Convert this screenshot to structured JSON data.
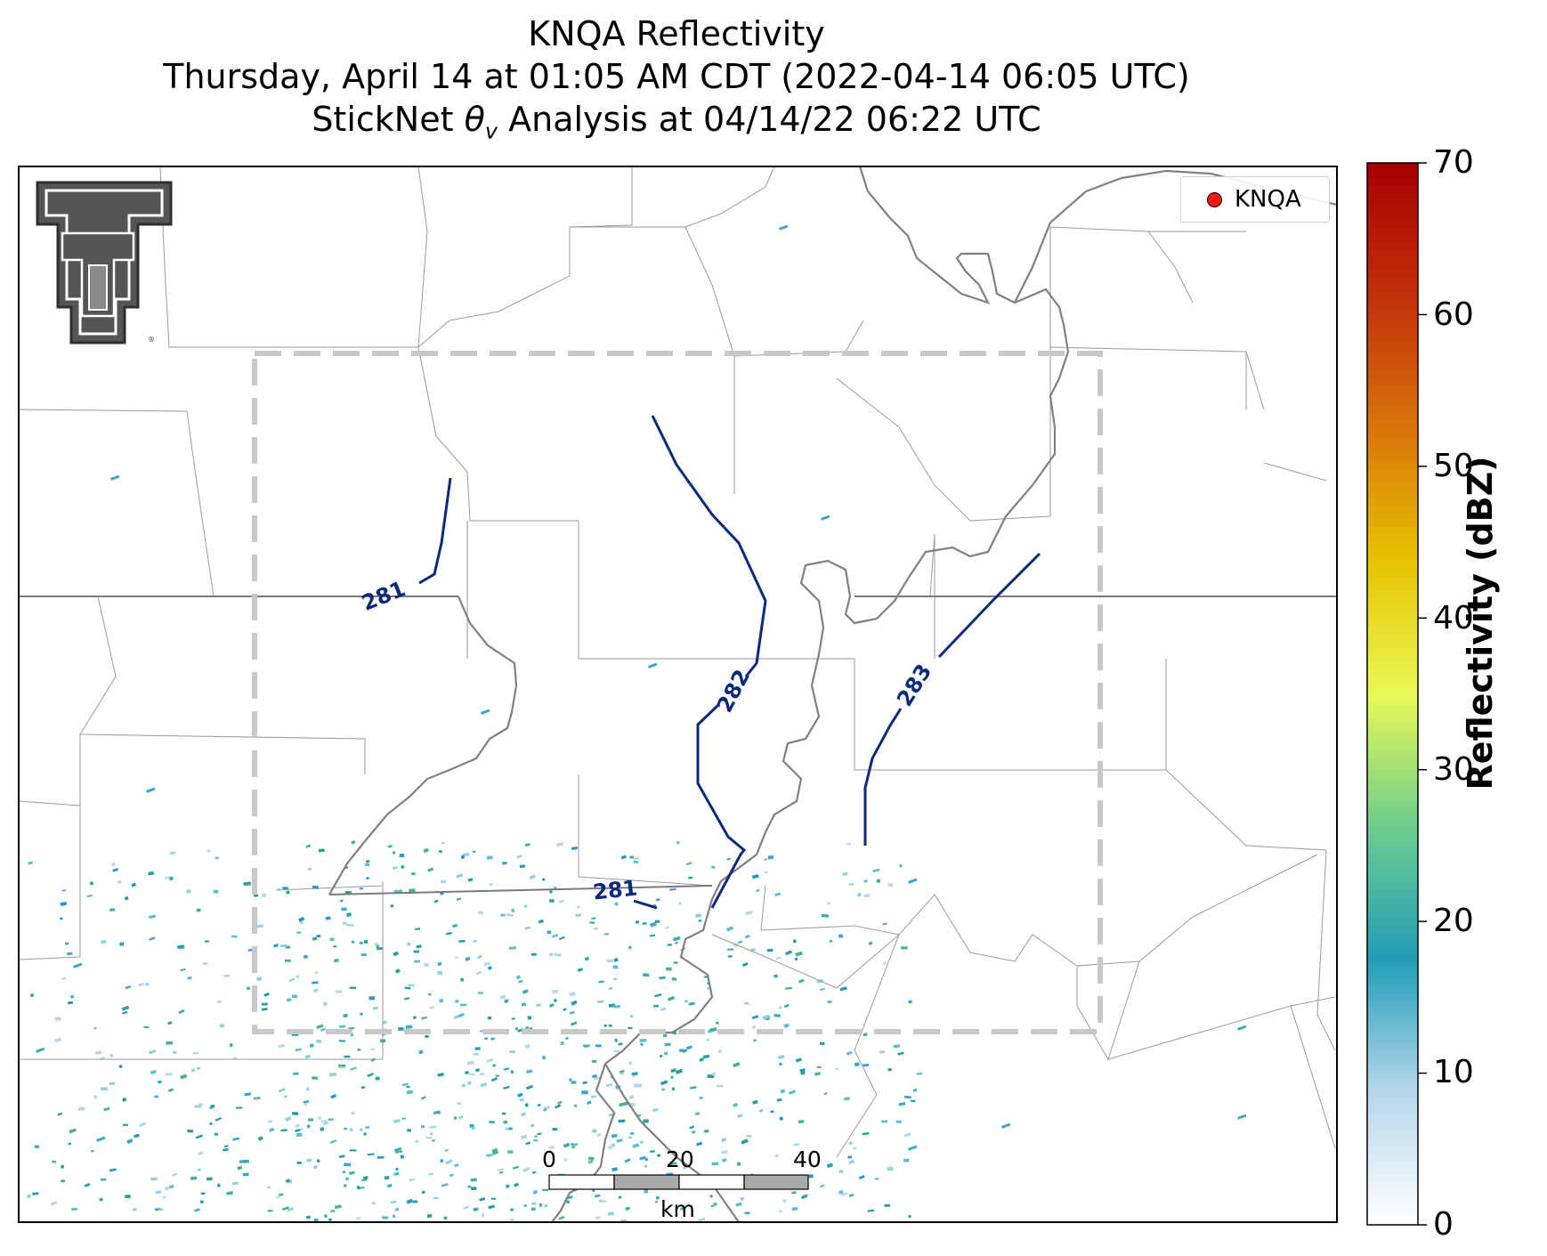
{
  "title": {
    "line1": "KNQA Reflectivity",
    "line2": "Thursday, April 14 at 01:05 AM CDT (2022-04-14 06:05 UTC)",
    "line3_prefix": "StickNet ",
    "line3_theta": "θ",
    "line3_sub": "v",
    "line3_suffix": " Analysis at 04/14/22 06:22 UTC"
  },
  "legend": {
    "label": "KNQA",
    "marker_color": "#ff1a1a"
  },
  "colorbar": {
    "label": "Reflectivity (dBZ)",
    "min": 0,
    "max": 70,
    "ticks": [
      "0",
      "10",
      "20",
      "30",
      "40",
      "50",
      "60",
      "70"
    ],
    "colors": [
      "#ffffff",
      "#b6d7ea",
      "#239db7",
      "#6ccd8d",
      "#eaf856",
      "#e6c300",
      "#d8740a",
      "#c2300a",
      "#a60000"
    ]
  },
  "scale_bar": {
    "ticks": [
      "0",
      "20",
      "40"
    ],
    "unit": "km"
  },
  "contours": [
    {
      "label": "281",
      "value": 281
    },
    {
      "label": "282",
      "value": 282
    },
    {
      "label": "283",
      "value": 283
    },
    {
      "label": "281",
      "value": 281
    }
  ],
  "colors": {
    "contour": "#0a2a7a",
    "river": "#808080",
    "boundary": "#9a9a9a",
    "domain_box": "#c8c8c8"
  },
  "logo": {
    "name": "Texas Tech double-T logo"
  }
}
